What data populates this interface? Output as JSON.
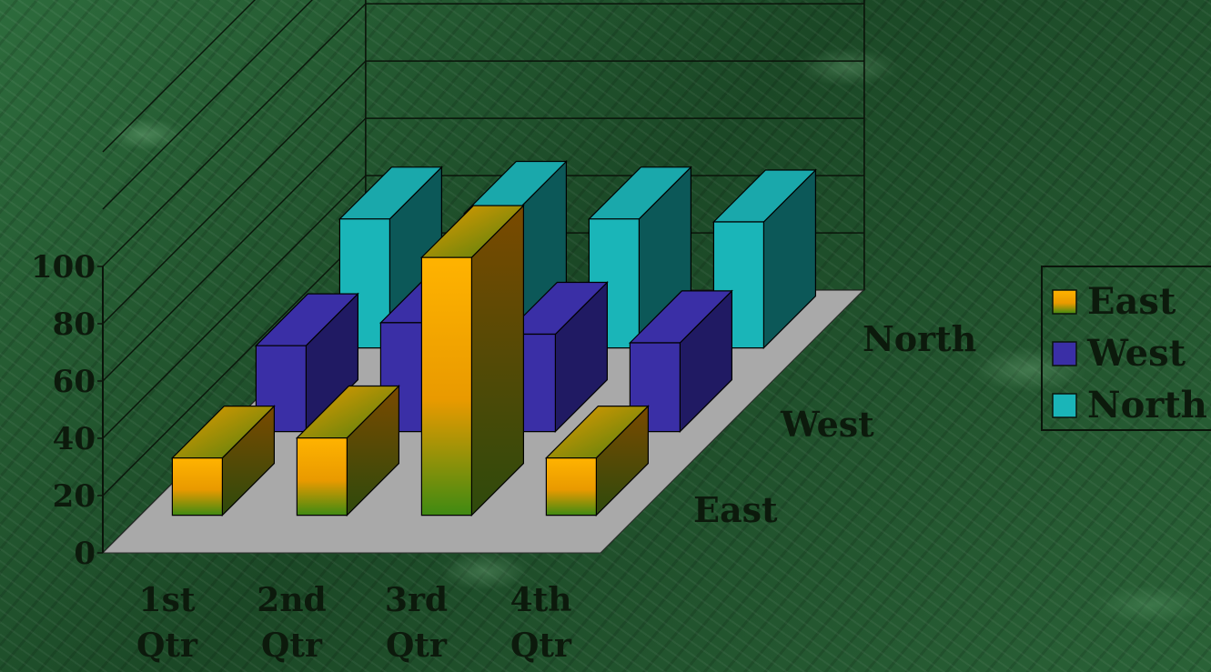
{
  "chart_data": {
    "type": "bar",
    "style": "3d-column",
    "categories": [
      "1st Qtr",
      "2nd Qtr",
      "3rd Qtr",
      "4th Qtr"
    ],
    "series": [
      {
        "name": "East",
        "values": [
          20,
          27,
          90,
          20
        ]
      },
      {
        "name": "West",
        "values": [
          30,
          38,
          34,
          31
        ]
      },
      {
        "name": "North",
        "values": [
          45,
          47,
          45,
          44
        ]
      }
    ],
    "depth_labels": [
      "East",
      "West",
      "North"
    ],
    "y_ticks": [
      "0",
      "20",
      "40",
      "60",
      "80",
      "100"
    ],
    "ylim": [
      0,
      100
    ],
    "grid": true,
    "legend": {
      "position": "right",
      "entries": [
        "East",
        "West",
        "North"
      ]
    },
    "colors": {
      "East": "#f6a800",
      "West": "#3a2fa6",
      "North": "#1ab5b8",
      "floor": "#a9a9a9",
      "background": "#1e4f2c"
    }
  }
}
